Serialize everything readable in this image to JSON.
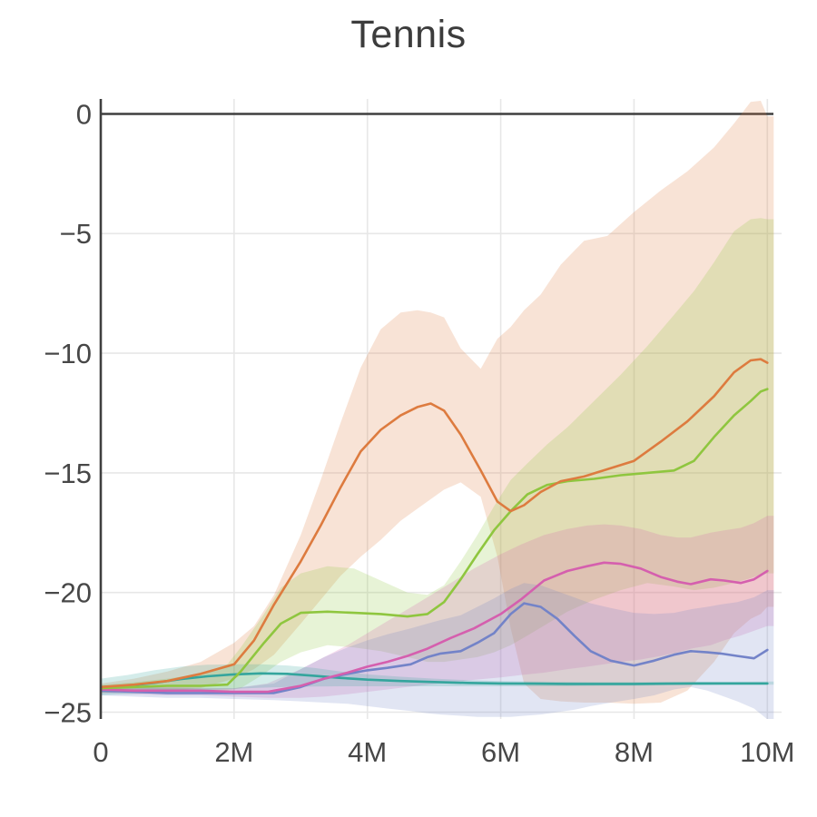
{
  "chart_data": {
    "type": "line",
    "title": "Tennis",
    "xlabel": "",
    "ylabel": "",
    "xlim_millions": [
      0,
      10.2
    ],
    "ylim": [
      -25.3,
      0.6
    ],
    "grid": true,
    "legend": "none",
    "x_ticks": [
      {
        "v": 0,
        "label": "0"
      },
      {
        "v": 2,
        "label": "2M"
      },
      {
        "v": 4,
        "label": "4M"
      },
      {
        "v": 6,
        "label": "6M"
      },
      {
        "v": 8,
        "label": "8M"
      },
      {
        "v": 10,
        "label": "10M"
      }
    ],
    "y_ticks": [
      {
        "v": 0,
        "label": "0"
      },
      {
        "v": -5,
        "label": "−5"
      },
      {
        "v": -10,
        "label": "−10"
      },
      {
        "v": -15,
        "label": "−15"
      },
      {
        "v": -20,
        "label": "−20"
      },
      {
        "v": -25,
        "label": "−25"
      }
    ],
    "colors": {
      "background": "#ffffff",
      "grid": "#e7e7e7",
      "axis": "#3f3f3f",
      "tick_text": "#474747",
      "title_text": "#3c3c3c"
    },
    "band_opacity": 0.21,
    "series": [
      {
        "name": "orange",
        "color": "#dd7b3f",
        "x": [
          0,
          0.5,
          1.0,
          1.5,
          2.0,
          2.3,
          2.6,
          3.0,
          3.3,
          3.6,
          3.9,
          4.2,
          4.5,
          4.75,
          4.95,
          5.15,
          5.4,
          5.7,
          5.95,
          6.15,
          6.35,
          6.6,
          6.9,
          7.25,
          7.6,
          8.0,
          8.4,
          8.8,
          9.2,
          9.5,
          9.75,
          9.9,
          10
        ],
        "mean": [
          -23.95,
          -23.85,
          -23.7,
          -23.4,
          -23.0,
          -22.0,
          -20.5,
          -18.7,
          -17.2,
          -15.6,
          -14.1,
          -13.2,
          -12.6,
          -12.25,
          -12.1,
          -12.4,
          -13.4,
          -14.9,
          -16.2,
          -16.6,
          -16.35,
          -15.8,
          -15.35,
          -15.15,
          -14.85,
          -14.5,
          -13.7,
          -12.85,
          -11.8,
          -10.8,
          -10.3,
          -10.25,
          -10.4
        ],
        "hi": [
          -23.8,
          -23.6,
          -23.3,
          -22.9,
          -22.1,
          -21.4,
          -20.1,
          -17.6,
          -15.3,
          -12.9,
          -10.6,
          -9.0,
          -8.3,
          -8.2,
          -8.3,
          -8.5,
          -9.8,
          -10.65,
          -9.4,
          -8.9,
          -8.2,
          -7.55,
          -6.3,
          -5.3,
          -5.1,
          -4.1,
          -3.2,
          -2.4,
          -1.4,
          -0.4,
          0.5,
          0.55,
          -0.1
        ],
        "lo": [
          -24.2,
          -24.15,
          -24.1,
          -24.0,
          -23.6,
          -23.2,
          -22.6,
          -21.3,
          -20.3,
          -19.3,
          -18.5,
          -17.8,
          -17.0,
          -16.5,
          -16.1,
          -15.7,
          -15.4,
          -16.0,
          -18.5,
          -21.5,
          -23.8,
          -24.45,
          -24.55,
          -24.6,
          -24.6,
          -24.65,
          -24.6,
          -24.1,
          -22.9,
          -21.7,
          -21.1,
          -20.9,
          -20.6
        ]
      },
      {
        "name": "green",
        "color": "#8fc63f",
        "x": [
          0,
          0.5,
          1.0,
          1.5,
          1.9,
          2.1,
          2.45,
          2.7,
          3.0,
          3.4,
          3.8,
          4.2,
          4.6,
          4.9,
          5.15,
          5.4,
          5.65,
          5.9,
          6.15,
          6.4,
          6.7,
          7.0,
          7.4,
          7.8,
          8.2,
          8.6,
          8.9,
          9.2,
          9.5,
          9.75,
          9.9,
          10
        ],
        "mean": [
          -24.0,
          -23.95,
          -23.9,
          -23.9,
          -23.85,
          -23.3,
          -22.1,
          -21.3,
          -20.85,
          -20.8,
          -20.85,
          -20.9,
          -21.0,
          -20.9,
          -20.4,
          -19.45,
          -18.4,
          -17.4,
          -16.6,
          -15.9,
          -15.5,
          -15.35,
          -15.25,
          -15.1,
          -15.0,
          -14.9,
          -14.5,
          -13.5,
          -12.6,
          -12.0,
          -11.6,
          -11.5
        ],
        "hi": [
          -23.85,
          -23.75,
          -23.6,
          -23.4,
          -23.0,
          -22.3,
          -20.9,
          -19.8,
          -19.2,
          -18.9,
          -19.0,
          -19.5,
          -20.0,
          -20.1,
          -19.7,
          -18.7,
          -17.6,
          -16.4,
          -15.3,
          -14.6,
          -13.8,
          -13.1,
          -12.0,
          -10.9,
          -9.7,
          -8.4,
          -7.4,
          -6.2,
          -4.9,
          -4.4,
          -4.35,
          -4.4
        ],
        "lo": [
          -24.2,
          -24.15,
          -24.1,
          -24.1,
          -24.1,
          -24.0,
          -23.4,
          -22.9,
          -22.5,
          -22.2,
          -22.3,
          -22.45,
          -22.7,
          -22.9,
          -22.9,
          -22.8,
          -22.7,
          -22.5,
          -22.2,
          -21.8,
          -21.3,
          -20.8,
          -20.3,
          -19.9,
          -19.6,
          -19.75,
          -19.9,
          -19.8,
          -19.6,
          -19.4,
          -19.25,
          -19.2
        ]
      },
      {
        "name": "magenta",
        "color": "#d55fae",
        "x": [
          0,
          0.5,
          1.0,
          1.5,
          2.0,
          2.5,
          3.0,
          3.35,
          3.7,
          4.0,
          4.3,
          4.6,
          4.9,
          5.25,
          5.6,
          6.0,
          6.3,
          6.65,
          7.0,
          7.3,
          7.55,
          7.8,
          8.1,
          8.4,
          8.65,
          8.85,
          9.15,
          9.35,
          9.6,
          9.8,
          10
        ],
        "mean": [
          -24.05,
          -24.1,
          -24.1,
          -24.1,
          -24.15,
          -24.15,
          -23.9,
          -23.6,
          -23.35,
          -23.1,
          -22.9,
          -22.65,
          -22.35,
          -21.9,
          -21.5,
          -20.9,
          -20.3,
          -19.5,
          -19.1,
          -18.9,
          -18.75,
          -18.8,
          -19.0,
          -19.35,
          -19.55,
          -19.65,
          -19.45,
          -19.5,
          -19.6,
          -19.45,
          -19.1
        ],
        "hi": [
          -23.9,
          -23.95,
          -23.95,
          -24.0,
          -24.0,
          -23.8,
          -23.2,
          -22.7,
          -22.2,
          -21.7,
          -21.2,
          -20.7,
          -20.2,
          -19.6,
          -19.0,
          -18.4,
          -18.0,
          -17.6,
          -17.35,
          -17.2,
          -17.15,
          -17.2,
          -17.35,
          -17.6,
          -17.7,
          -17.7,
          -17.5,
          -17.4,
          -17.3,
          -17.1,
          -16.8
        ],
        "lo": [
          -24.2,
          -24.25,
          -24.3,
          -24.3,
          -24.35,
          -24.4,
          -24.4,
          -24.35,
          -24.25,
          -24.15,
          -24.05,
          -23.95,
          -23.85,
          -23.75,
          -23.65,
          -23.55,
          -23.45,
          -23.35,
          -23.2,
          -23.1,
          -23.0,
          -22.9,
          -22.8,
          -22.65,
          -22.5,
          -22.35,
          -22.2,
          -22.0,
          -21.8,
          -21.6,
          -21.4
        ]
      },
      {
        "name": "blue",
        "color": "#7383c8",
        "x": [
          0,
          0.5,
          1.0,
          1.5,
          2.0,
          2.6,
          3.0,
          3.35,
          3.7,
          4.0,
          4.3,
          4.65,
          4.9,
          5.1,
          5.4,
          5.65,
          5.9,
          6.15,
          6.35,
          6.6,
          6.85,
          7.1,
          7.35,
          7.65,
          8.0,
          8.3,
          8.6,
          8.85,
          9.1,
          9.3,
          9.55,
          9.8,
          10
        ],
        "mean": [
          -24.1,
          -24.15,
          -24.2,
          -24.2,
          -24.2,
          -24.2,
          -23.95,
          -23.6,
          -23.4,
          -23.25,
          -23.15,
          -23.0,
          -22.7,
          -22.55,
          -22.45,
          -22.1,
          -21.7,
          -20.9,
          -20.45,
          -20.6,
          -21.1,
          -21.8,
          -22.45,
          -22.85,
          -23.05,
          -22.85,
          -22.6,
          -22.45,
          -22.5,
          -22.55,
          -22.65,
          -22.75,
          -22.4
        ],
        "hi": [
          -23.9,
          -23.95,
          -24.0,
          -24.0,
          -24.0,
          -23.8,
          -23.2,
          -22.7,
          -22.3,
          -22.0,
          -21.75,
          -21.5,
          -21.3,
          -21.15,
          -20.95,
          -20.6,
          -20.25,
          -19.85,
          -19.6,
          -19.7,
          -19.95,
          -20.2,
          -20.45,
          -20.65,
          -20.85,
          -20.9,
          -20.85,
          -20.7,
          -20.6,
          -20.5,
          -20.4,
          -20.2,
          -19.9
        ],
        "lo": [
          -24.3,
          -24.35,
          -24.4,
          -24.4,
          -24.45,
          -24.5,
          -24.55,
          -24.6,
          -24.65,
          -24.75,
          -24.85,
          -24.95,
          -25.05,
          -25.1,
          -25.15,
          -25.2,
          -25.2,
          -25.2,
          -25.15,
          -25.1,
          -25.0,
          -24.9,
          -24.75,
          -24.6,
          -24.45,
          -24.3,
          -24.05,
          -23.95,
          -24.1,
          -24.3,
          -24.55,
          -24.85,
          -25.3
        ]
      },
      {
        "name": "teal",
        "color": "#34a59d",
        "x": [
          0,
          0.4,
          0.8,
          1.2,
          1.6,
          2.0,
          2.4,
          2.8,
          3.2,
          3.6,
          4.0,
          4.5,
          5.0,
          5.5,
          6.0,
          6.5,
          7.0,
          7.5,
          8.0,
          8.5,
          9.0,
          9.5,
          10
        ],
        "mean": [
          -23.95,
          -23.9,
          -23.78,
          -23.62,
          -23.5,
          -23.42,
          -23.38,
          -23.4,
          -23.48,
          -23.57,
          -23.64,
          -23.7,
          -23.74,
          -23.78,
          -23.8,
          -23.81,
          -23.82,
          -23.82,
          -23.82,
          -23.81,
          -23.8,
          -23.8,
          -23.8
        ],
        "hi": [
          -23.6,
          -23.45,
          -23.25,
          -23.1,
          -23.02,
          -23.0,
          -23.0,
          -23.05,
          -23.15,
          -23.3,
          -23.42,
          -23.52,
          -23.6,
          -23.66,
          -23.7,
          -23.72,
          -23.73,
          -23.74,
          -23.74,
          -23.74,
          -23.73,
          -23.73,
          -23.72
        ],
        "lo": [
          -24.3,
          -24.25,
          -24.2,
          -24.13,
          -24.07,
          -24.02,
          -23.98,
          -23.95,
          -23.93,
          -23.92,
          -23.92,
          -23.92,
          -23.92,
          -23.92,
          -23.92,
          -23.92,
          -23.92,
          -23.9,
          -23.9,
          -23.88,
          -23.87,
          -23.86,
          -23.85
        ]
      }
    ]
  }
}
